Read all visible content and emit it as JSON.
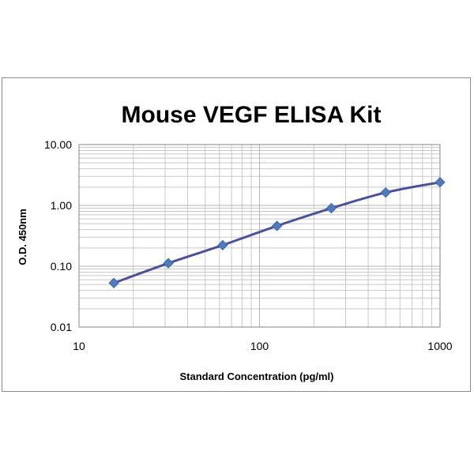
{
  "chart_data": {
    "type": "line",
    "title": "Mouse VEGF ELISA Kit",
    "xlabel": "Standard Concentration (pg/ml)",
    "ylabel": "O.D. 450nm",
    "x_scale": "log",
    "y_scale": "log",
    "xlim": [
      10,
      1000
    ],
    "ylim": [
      0.01,
      10
    ],
    "x_ticks": [
      "10",
      "100",
      "1000"
    ],
    "y_ticks": [
      "0.01",
      "0.10",
      "1.00",
      "10.00"
    ],
    "grid": true,
    "legend": "none",
    "series": [
      {
        "x": [
          15.6,
          31.25,
          62.5,
          125,
          250,
          500,
          1000
        ],
        "y": [
          0.053,
          0.112,
          0.222,
          0.46,
          0.9,
          1.63,
          2.4
        ]
      }
    ],
    "colors": {
      "line": "#4B5299",
      "marker": "#4F7BBE",
      "grid": "#c8c8c8",
      "axis": "#868686"
    }
  }
}
